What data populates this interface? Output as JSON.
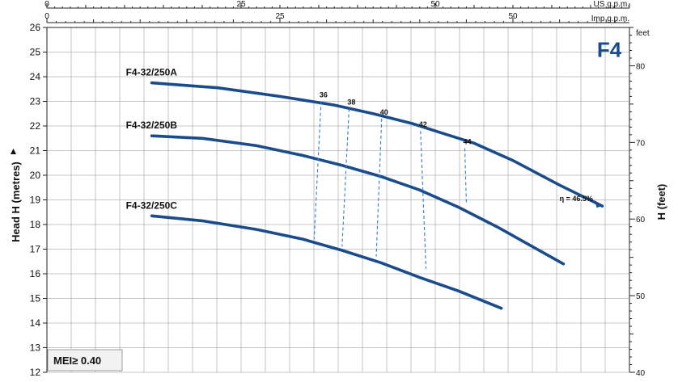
{
  "chart_data": {
    "type": "line",
    "title": "F4",
    "ylabel": "Head H (metres)",
    "ylabel_right": "H (feet)",
    "ylim": [
      12,
      26
    ],
    "yticks": [
      12,
      13,
      14,
      15,
      16,
      17,
      18,
      19,
      20,
      21,
      22,
      23,
      24,
      25,
      26
    ],
    "right_axis": {
      "unit_label": "feet",
      "range": [
        40,
        85
      ],
      "ticks": [
        40,
        50,
        60,
        70,
        80
      ]
    },
    "top_axes": [
      {
        "unit_label": "US g.p.m.",
        "range": [
          0,
          75
        ],
        "ticks": [
          0,
          25,
          50
        ]
      },
      {
        "unit_label": "Imp g.p.m.",
        "range": [
          0,
          62.5
        ],
        "ticks": [
          0,
          25,
          50
        ]
      }
    ],
    "x_grid_range": [
      0,
      75
    ],
    "series": [
      {
        "name": "F4-32/250A",
        "x": [
          13.5,
          22,
          30,
          37,
          42,
          47,
          51,
          55,
          60,
          66,
          71.5
        ],
        "y": [
          23.75,
          23.55,
          23.2,
          22.85,
          22.5,
          22.1,
          21.7,
          21.3,
          20.6,
          19.6,
          18.75
        ]
      },
      {
        "name": "F4-32/250B",
        "x": [
          13.5,
          20,
          27,
          33,
          38,
          43,
          48,
          53,
          58,
          66.5
        ],
        "y": [
          21.6,
          21.5,
          21.2,
          20.8,
          20.4,
          19.95,
          19.4,
          18.7,
          17.9,
          16.4
        ]
      },
      {
        "name": "F4-32/250C",
        "x": [
          13.5,
          20,
          27,
          33,
          38,
          43,
          48,
          53,
          58.5
        ],
        "y": [
          18.35,
          18.15,
          17.8,
          17.4,
          16.95,
          16.45,
          15.85,
          15.3,
          14.6
        ]
      }
    ],
    "efficiency_lines": [
      {
        "label": "36",
        "x": [
          35.3,
          34.4
        ],
        "y": [
          23.0,
          17.4
        ]
      },
      {
        "label": "38",
        "x": [
          38.9,
          38.0
        ],
        "y": [
          22.7,
          17.1
        ]
      },
      {
        "label": "40",
        "x": [
          43.1,
          42.4
        ],
        "y": [
          22.3,
          16.7
        ]
      },
      {
        "label": "42",
        "x": [
          48.1,
          48.8
        ],
        "y": [
          21.8,
          16.2
        ]
      },
      {
        "label": "44",
        "x": [
          53.8,
          54.0
        ],
        "y": [
          21.1,
          18.9
        ]
      }
    ],
    "efficiency_max_label": "η = 46.5%",
    "mei_label": "MEI≥ 0.40"
  }
}
